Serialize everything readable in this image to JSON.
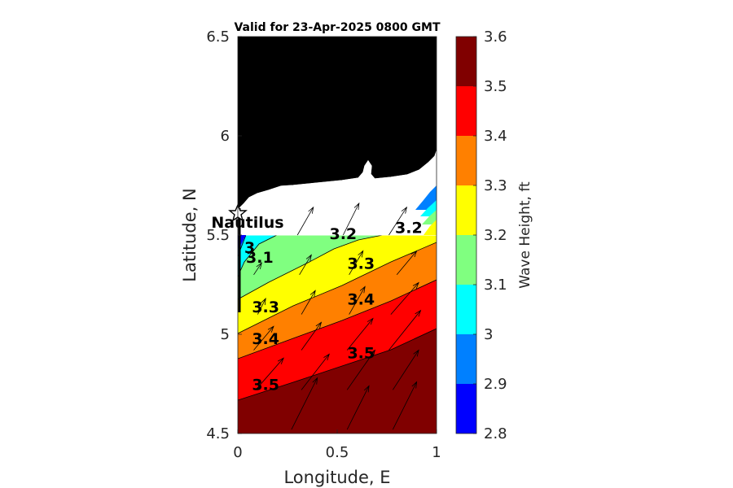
{
  "chart_data": {
    "type": "contour",
    "title": "Valid for 23-Apr-2025 0800 GMT",
    "xlabel": "Longitude, E",
    "ylabel": "Latitude, N",
    "xlim": [
      0,
      1
    ],
    "ylim": [
      4.5,
      6.5
    ],
    "x_ticks": [
      "0",
      "0.5",
      "1"
    ],
    "y_ticks": [
      "4.5",
      "5",
      "5.5",
      "6",
      "6.5"
    ],
    "colorbar": {
      "label": "Wave Height, ft",
      "ticks": [
        "2.8",
        "2.9",
        "3",
        "3.1",
        "3.2",
        "3.3",
        "3.4",
        "3.5",
        "3.6"
      ],
      "levels": [
        2.8,
        2.9,
        3.0,
        3.1,
        3.2,
        3.3,
        3.4,
        3.5,
        3.6
      ],
      "colors": [
        "#0000ff",
        "#0080ff",
        "#00ffff",
        "#80ff80",
        "#ffff00",
        "#ff8000",
        "#ff0000",
        "#800000"
      ]
    },
    "contour_labels": [
      {
        "text": "3.2",
        "x": 0.53,
        "y": 5.48
      },
      {
        "text": "3.2",
        "x": 0.86,
        "y": 5.51
      },
      {
        "text": "3.1",
        "x": 0.11,
        "y": 5.36
      },
      {
        "text": "3",
        "x": 0.06,
        "y": 5.41
      },
      {
        "text": "3.3",
        "x": 0.62,
        "y": 5.33
      },
      {
        "text": "3.3",
        "x": 0.14,
        "y": 5.11
      },
      {
        "text": "3.4",
        "x": 0.62,
        "y": 5.15
      },
      {
        "text": "3.4",
        "x": 0.14,
        "y": 4.95
      },
      {
        "text": "3.5",
        "x": 0.62,
        "y": 4.88
      },
      {
        "text": "3.5",
        "x": 0.14,
        "y": 4.72
      }
    ],
    "location": {
      "name": "Nautilus",
      "x": 0.0,
      "y": 5.62
    },
    "vectors": [
      {
        "x": 0.27,
        "y": 4.52,
        "dx": 0.13,
        "dy": 0.26
      },
      {
        "x": 0.55,
        "y": 4.52,
        "dx": 0.11,
        "dy": 0.22
      },
      {
        "x": 0.78,
        "y": 4.52,
        "dx": 0.12,
        "dy": 0.24
      },
      {
        "x": 0.09,
        "y": 4.72,
        "dx": 0.14,
        "dy": 0.16
      },
      {
        "x": 0.32,
        "y": 4.72,
        "dx": 0.14,
        "dy": 0.18
      },
      {
        "x": 0.55,
        "y": 4.72,
        "dx": 0.14,
        "dy": 0.2
      },
      {
        "x": 0.78,
        "y": 4.72,
        "dx": 0.13,
        "dy": 0.2
      },
      {
        "x": 0.08,
        "y": 4.92,
        "dx": 0.1,
        "dy": 0.12
      },
      {
        "x": 0.32,
        "y": 4.92,
        "dx": 0.1,
        "dy": 0.14
      },
      {
        "x": 0.55,
        "y": 4.92,
        "dx": 0.13,
        "dy": 0.16
      },
      {
        "x": 0.76,
        "y": 4.92,
        "dx": 0.16,
        "dy": 0.2
      },
      {
        "x": 0.1,
        "y": 5.1,
        "dx": 0.04,
        "dy": 0.08
      },
      {
        "x": 0.32,
        "y": 5.1,
        "dx": 0.07,
        "dy": 0.12
      },
      {
        "x": 0.56,
        "y": 5.1,
        "dx": 0.08,
        "dy": 0.14
      },
      {
        "x": 0.77,
        "y": 5.1,
        "dx": 0.14,
        "dy": 0.16
      },
      {
        "x": 0.08,
        "y": 5.3,
        "dx": 0.04,
        "dy": 0.06
      },
      {
        "x": 0.31,
        "y": 5.3,
        "dx": 0.06,
        "dy": 0.1
      },
      {
        "x": 0.56,
        "y": 5.3,
        "dx": 0.07,
        "dy": 0.12
      },
      {
        "x": 0.8,
        "y": 5.3,
        "dx": 0.1,
        "dy": 0.12
      },
      {
        "x": 0.3,
        "y": 5.5,
        "dx": 0.08,
        "dy": 0.14
      },
      {
        "x": 0.53,
        "y": 5.5,
        "dx": 0.08,
        "dy": 0.16
      },
      {
        "x": 0.76,
        "y": 5.5,
        "dx": 0.09,
        "dy": 0.14
      }
    ]
  }
}
